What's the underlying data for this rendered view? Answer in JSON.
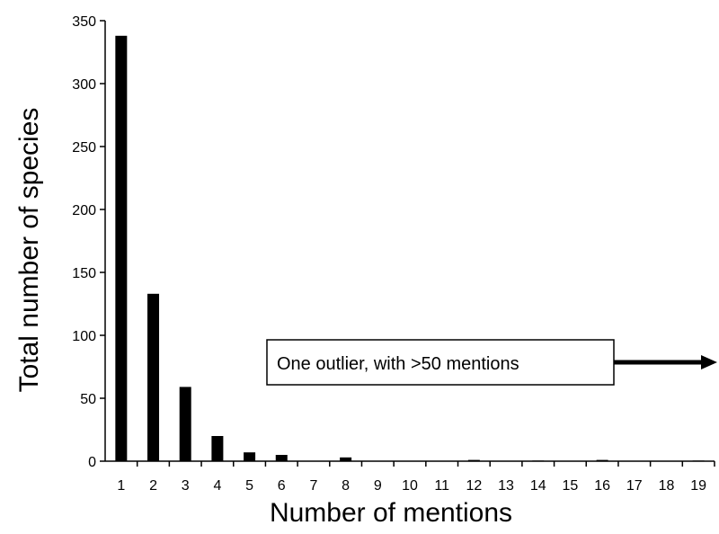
{
  "chart_data": {
    "type": "bar",
    "title": "",
    "xlabel": "Number of mentions",
    "ylabel": "Total number of species",
    "ylim": [
      0,
      350
    ],
    "yticks": [
      0,
      50,
      100,
      150,
      200,
      250,
      300,
      350
    ],
    "categories": [
      "1",
      "2",
      "3",
      "4",
      "5",
      "6",
      "7",
      "8",
      "9",
      "10",
      "11",
      "12",
      "13",
      "14",
      "15",
      "16",
      "17",
      "18",
      "19"
    ],
    "values": [
      338,
      133,
      59,
      20,
      7,
      5,
      0,
      3,
      0,
      0,
      0,
      1,
      0,
      0.5,
      0,
      1,
      0,
      0,
      0.5
    ],
    "bar_color": "#000000",
    "grid": false,
    "legend": "none",
    "annotation": {
      "text": "One outlier, with >50 mentions",
      "arrow_direction": "right"
    }
  }
}
